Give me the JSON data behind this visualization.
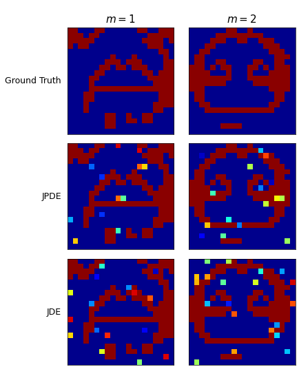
{
  "title_labels": [
    "$m = 1$",
    "$m = 2$"
  ],
  "row_labels": [
    "Ground Truth",
    "JPDE",
    "JDE"
  ],
  "grid_size": 20,
  "figsize": [
    4.35,
    5.33
  ],
  "dpi": 100,
  "col_title_fontsize": 11,
  "row_label_fontsize": 9,
  "dark_red": [
    0.545,
    0.0,
    0.0,
    1.0
  ],
  "dark_blue": [
    0.0,
    0.0,
    0.55,
    1.0
  ],
  "gt_m1": [
    [
      1,
      1,
      0,
      0,
      0,
      1,
      1,
      0,
      0,
      0,
      0,
      0,
      0,
      1,
      1,
      0,
      0,
      1,
      1,
      1
    ],
    [
      1,
      1,
      1,
      0,
      1,
      1,
      0,
      0,
      0,
      0,
      0,
      0,
      0,
      0,
      0,
      1,
      1,
      1,
      1,
      1
    ],
    [
      1,
      1,
      1,
      1,
      1,
      0,
      0,
      0,
      0,
      0,
      0,
      0,
      0,
      0,
      1,
      1,
      1,
      1,
      0,
      1
    ],
    [
      1,
      0,
      1,
      1,
      0,
      0,
      0,
      0,
      0,
      0,
      0,
      0,
      0,
      0,
      0,
      1,
      1,
      1,
      0,
      0
    ],
    [
      0,
      0,
      0,
      0,
      0,
      0,
      0,
      0,
      0,
      0,
      0,
      0,
      0,
      0,
      0,
      0,
      0,
      1,
      1,
      0
    ],
    [
      0,
      0,
      0,
      0,
      0,
      0,
      0,
      0,
      1,
      0,
      0,
      0,
      1,
      0,
      0,
      0,
      0,
      0,
      1,
      0
    ],
    [
      0,
      0,
      0,
      0,
      0,
      0,
      0,
      1,
      1,
      1,
      0,
      1,
      1,
      1,
      0,
      0,
      0,
      0,
      1,
      1
    ],
    [
      0,
      0,
      0,
      0,
      0,
      0,
      1,
      1,
      0,
      1,
      1,
      0,
      1,
      1,
      1,
      0,
      0,
      0,
      1,
      1
    ],
    [
      0,
      0,
      0,
      0,
      0,
      1,
      1,
      0,
      0,
      0,
      0,
      0,
      0,
      0,
      1,
      1,
      0,
      1,
      1,
      1
    ],
    [
      0,
      0,
      0,
      0,
      1,
      1,
      0,
      0,
      0,
      0,
      0,
      0,
      0,
      0,
      0,
      1,
      1,
      1,
      1,
      1
    ],
    [
      0,
      0,
      0,
      0,
      1,
      0,
      0,
      0,
      0,
      0,
      0,
      0,
      0,
      0,
      0,
      0,
      1,
      1,
      1,
      1
    ],
    [
      0,
      0,
      0,
      0,
      1,
      1,
      1,
      1,
      1,
      1,
      1,
      1,
      1,
      1,
      1,
      1,
      1,
      1,
      1,
      1
    ],
    [
      0,
      0,
      0,
      1,
      1,
      0,
      0,
      0,
      0,
      0,
      0,
      0,
      0,
      0,
      0,
      0,
      0,
      1,
      1,
      1
    ],
    [
      0,
      0,
      0,
      1,
      1,
      0,
      0,
      0,
      0,
      0,
      0,
      0,
      0,
      0,
      0,
      0,
      0,
      1,
      1,
      1
    ],
    [
      0,
      0,
      0,
      1,
      0,
      0,
      0,
      0,
      0,
      0,
      0,
      0,
      0,
      0,
      0,
      0,
      1,
      1,
      1,
      1
    ],
    [
      0,
      0,
      0,
      1,
      0,
      0,
      0,
      0,
      0,
      0,
      0,
      0,
      0,
      0,
      0,
      0,
      1,
      1,
      0,
      0
    ],
    [
      0,
      0,
      0,
      0,
      0,
      0,
      0,
      1,
      1,
      0,
      0,
      1,
      0,
      0,
      1,
      1,
      0,
      0,
      0,
      0
    ],
    [
      0,
      0,
      0,
      0,
      0,
      0,
      0,
      1,
      1,
      0,
      0,
      1,
      1,
      0,
      1,
      1,
      0,
      0,
      0,
      0
    ],
    [
      0,
      0,
      0,
      0,
      0,
      0,
      0,
      1,
      1,
      0,
      0,
      0,
      0,
      0,
      0,
      0,
      0,
      0,
      0,
      0
    ],
    [
      0,
      0,
      0,
      0,
      0,
      0,
      0,
      0,
      0,
      0,
      0,
      0,
      0,
      0,
      0,
      0,
      0,
      0,
      0,
      0
    ]
  ],
  "gt_m2": [
    [
      0,
      0,
      0,
      0,
      0,
      0,
      0,
      1,
      1,
      0,
      0,
      1,
      0,
      0,
      0,
      0,
      0,
      0,
      0,
      0
    ],
    [
      0,
      0,
      0,
      0,
      0,
      1,
      1,
      1,
      1,
      1,
      1,
      1,
      1,
      1,
      0,
      0,
      0,
      0,
      0,
      0
    ],
    [
      0,
      0,
      0,
      0,
      1,
      1,
      1,
      0,
      0,
      1,
      1,
      0,
      0,
      1,
      1,
      1,
      0,
      0,
      0,
      0
    ],
    [
      0,
      0,
      0,
      1,
      1,
      0,
      0,
      0,
      0,
      0,
      0,
      0,
      0,
      0,
      1,
      1,
      1,
      0,
      0,
      0
    ],
    [
      0,
      0,
      1,
      1,
      0,
      0,
      0,
      0,
      0,
      0,
      0,
      0,
      0,
      0,
      0,
      1,
      1,
      1,
      0,
      0
    ],
    [
      0,
      1,
      1,
      0,
      0,
      0,
      0,
      0,
      0,
      0,
      0,
      0,
      0,
      0,
      0,
      0,
      1,
      1,
      1,
      0
    ],
    [
      0,
      1,
      1,
      0,
      0,
      1,
      1,
      0,
      0,
      0,
      0,
      0,
      1,
      1,
      0,
      0,
      1,
      1,
      0,
      0
    ],
    [
      1,
      1,
      1,
      0,
      1,
      0,
      1,
      1,
      0,
      0,
      0,
      1,
      1,
      0,
      1,
      0,
      1,
      1,
      1,
      0
    ],
    [
      1,
      1,
      1,
      1,
      0,
      0,
      0,
      1,
      0,
      0,
      0,
      1,
      0,
      0,
      0,
      1,
      1,
      1,
      1,
      0
    ],
    [
      1,
      1,
      1,
      1,
      1,
      1,
      1,
      1,
      0,
      0,
      0,
      1,
      1,
      1,
      1,
      1,
      1,
      1,
      1,
      0
    ],
    [
      1,
      1,
      1,
      1,
      1,
      1,
      1,
      0,
      0,
      0,
      0,
      0,
      1,
      1,
      1,
      1,
      1,
      1,
      1,
      0
    ],
    [
      1,
      1,
      1,
      0,
      0,
      0,
      0,
      0,
      0,
      0,
      0,
      0,
      0,
      0,
      0,
      1,
      1,
      1,
      1,
      0
    ],
    [
      0,
      1,
      1,
      0,
      0,
      0,
      0,
      0,
      0,
      0,
      0,
      0,
      0,
      0,
      0,
      0,
      1,
      1,
      0,
      0
    ],
    [
      0,
      1,
      1,
      0,
      0,
      0,
      0,
      0,
      0,
      0,
      0,
      0,
      0,
      0,
      0,
      0,
      1,
      1,
      0,
      0
    ],
    [
      0,
      0,
      1,
      1,
      0,
      0,
      0,
      0,
      0,
      0,
      0,
      0,
      0,
      0,
      0,
      1,
      1,
      0,
      0,
      0
    ],
    [
      0,
      0,
      0,
      1,
      1,
      1,
      1,
      1,
      1,
      1,
      1,
      1,
      1,
      1,
      1,
      1,
      0,
      0,
      0,
      0
    ],
    [
      0,
      0,
      0,
      0,
      0,
      0,
      0,
      0,
      0,
      0,
      0,
      0,
      0,
      0,
      0,
      0,
      0,
      0,
      0,
      0
    ],
    [
      0,
      0,
      0,
      0,
      0,
      0,
      0,
      0,
      0,
      0,
      0,
      0,
      0,
      0,
      0,
      0,
      0,
      0,
      0,
      0
    ],
    [
      0,
      0,
      0,
      0,
      0,
      0,
      1,
      1,
      1,
      1,
      0,
      0,
      0,
      0,
      0,
      0,
      0,
      0,
      0,
      0
    ],
    [
      0,
      0,
      0,
      0,
      0,
      0,
      0,
      0,
      0,
      0,
      0,
      0,
      0,
      0,
      0,
      0,
      0,
      0,
      0,
      0
    ]
  ],
  "noise_configs": {
    "jpde_m1": {
      "seed": 42,
      "density": 0.03
    },
    "jpde_m2": {
      "seed": 123,
      "density": 0.04
    },
    "jde_m1": {
      "seed": 7,
      "density": 0.04
    },
    "jde_m2": {
      "seed": 99,
      "density": 0.05
    }
  }
}
